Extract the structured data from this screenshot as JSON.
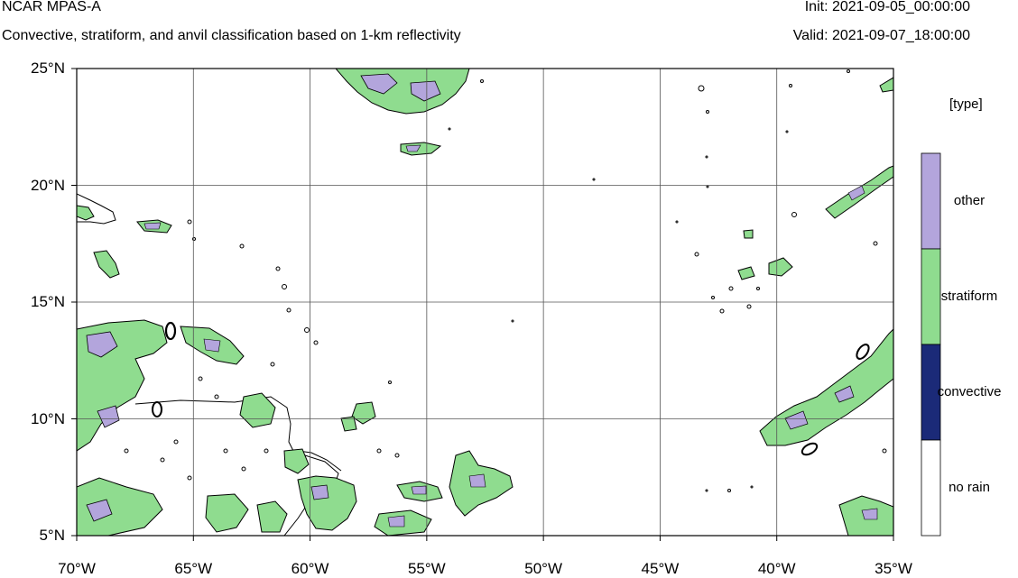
{
  "header": {
    "model": "NCAR MPAS-A",
    "subtitle": "Convective, stratiform, and anvil classification based on 1-km reflectivity",
    "init": "Init: 2021-09-05_00:00:00",
    "valid": "Valid: 2021-09-07_18:00:00"
  },
  "map": {
    "lat_ticks": [
      "25°N",
      "20°N",
      "15°N",
      "10°N",
      "5°N"
    ],
    "lon_ticks": [
      "70°W",
      "65°W",
      "60°W",
      "55°W",
      "50°W",
      "45°W",
      "40°W",
      "35°W"
    ],
    "lat_range": [
      5,
      25
    ],
    "lon_range": [
      -70,
      -35
    ],
    "grid": true,
    "colors": {
      "stratiform": "#8fdc8f",
      "other": "#b3a5dc",
      "convective": "#1b2a78",
      "contour": "#000000",
      "grid": "#555555"
    }
  },
  "legend": {
    "title": "[type]",
    "items": [
      {
        "label": "other",
        "color": "#b3a5dc"
      },
      {
        "label": "stratiform",
        "color": "#8fdc8f"
      },
      {
        "label": "convective",
        "color": "#1b2a78"
      },
      {
        "label": "no rain",
        "color": "#ffffff"
      }
    ]
  }
}
